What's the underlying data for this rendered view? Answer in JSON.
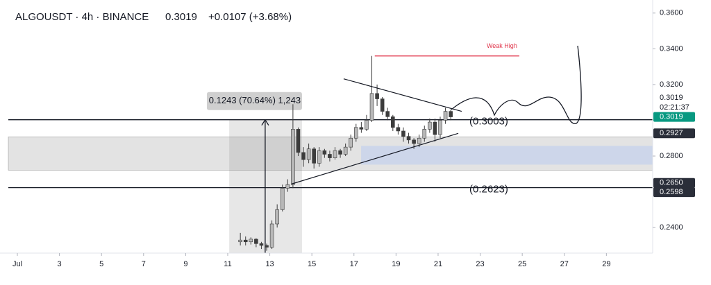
{
  "chart_data": {
    "type": "candlestick",
    "symbol": "ALGOUSDT · 4h · BINANCE",
    "price": "0.3019",
    "change": "+0.0107 (+3.68%)",
    "xlim": [
      0.175,
      31.2
    ],
    "ylim": [
      0.2257,
      0.3673
    ],
    "xticks": [
      {
        "value": 1,
        "label": "Jul"
      },
      3,
      5,
      7,
      9,
      11,
      13,
      15,
      17,
      19,
      21,
      23,
      25,
      27,
      29
    ],
    "yticks": [
      {
        "value": 0.36,
        "label": "0.3600"
      },
      {
        "value": 0.34,
        "label": "0.3400"
      },
      {
        "value": 0.32,
        "label": "0.3200"
      },
      {
        "value": 0.28,
        "label": "0.2800"
      },
      {
        "value": 0.24,
        "label": "0.2400"
      }
    ],
    "up_color": "#b8b8b8",
    "down_color": "#3c3c3c",
    "candles": {
      "x": [
        11.6,
        11.85,
        12.1,
        12.35,
        12.6,
        12.85,
        13.1,
        13.35,
        13.6,
        13.85,
        14.1,
        14.35,
        14.6,
        14.85,
        15.1,
        15.35,
        15.6,
        15.85,
        16.1,
        16.35,
        16.6,
        16.85,
        17.1,
        17.35,
        17.6,
        17.85,
        18.1,
        18.35,
        18.6,
        18.85,
        19.1,
        19.35,
        19.6,
        19.85,
        20.1,
        20.35,
        20.6,
        20.85,
        21.1,
        21.35,
        21.6
      ],
      "open": [
        0.232,
        0.233,
        0.232,
        0.2335,
        0.231,
        0.23,
        0.229,
        0.242,
        0.25,
        0.262,
        0.264,
        0.295,
        0.282,
        0.278,
        0.284,
        0.276,
        0.283,
        0.281,
        0.279,
        0.283,
        0.281,
        0.285,
        0.29,
        0.296,
        0.295,
        0.3,
        0.315,
        0.312,
        0.305,
        0.302,
        0.296,
        0.294,
        0.291,
        0.289,
        0.287,
        0.29,
        0.295,
        0.299,
        0.292,
        0.3,
        0.305
      ],
      "high": [
        0.237,
        0.235,
        0.2345,
        0.234,
        0.232,
        0.231,
        0.244,
        0.253,
        0.264,
        0.267,
        0.309,
        0.296,
        0.285,
        0.287,
        0.285,
        0.285,
        0.284,
        0.283,
        0.285,
        0.284,
        0.287,
        0.292,
        0.298,
        0.299,
        0.303,
        0.336,
        0.32,
        0.313,
        0.307,
        0.303,
        0.298,
        0.296,
        0.293,
        0.29,
        0.292,
        0.297,
        0.301,
        0.301,
        0.302,
        0.307,
        0.306
      ],
      "low": [
        0.23,
        0.23,
        0.2305,
        0.229,
        0.228,
        0.227,
        0.228,
        0.24,
        0.249,
        0.26,
        0.262,
        0.28,
        0.274,
        0.276,
        0.273,
        0.274,
        0.279,
        0.277,
        0.278,
        0.279,
        0.28,
        0.283,
        0.288,
        0.293,
        0.294,
        0.299,
        0.308,
        0.303,
        0.3,
        0.294,
        0.292,
        0.288,
        0.287,
        0.284,
        0.285,
        0.288,
        0.293,
        0.288,
        0.29,
        0.298,
        0.3
      ],
      "close": [
        0.233,
        0.232,
        0.2335,
        0.231,
        0.23,
        0.229,
        0.242,
        0.25,
        0.262,
        0.264,
        0.295,
        0.282,
        0.278,
        0.284,
        0.276,
        0.283,
        0.281,
        0.279,
        0.283,
        0.281,
        0.285,
        0.29,
        0.296,
        0.295,
        0.3,
        0.315,
        0.312,
        0.305,
        0.302,
        0.296,
        0.294,
        0.291,
        0.289,
        0.287,
        0.29,
        0.295,
        0.299,
        0.292,
        0.3,
        0.305,
        0.3019
      ]
    },
    "levels": [
      {
        "value": 0.3003,
        "label": "(0.3003)"
      },
      {
        "value": 0.2623,
        "label": "(0.2623)"
      }
    ],
    "zones": [
      {
        "range": [
          0.2721,
          0.2907
        ],
        "color": "#e3e3e3"
      },
      {
        "range": [
          0.2752,
          0.2857
        ],
        "from": 17.34,
        "color": "#cdd6ea"
      }
    ],
    "trendlines": [
      {
        "x": [
          16.51,
          22.12
        ],
        "y": [
          0.3232,
          0.305
        ]
      },
      {
        "x": [
          14.04,
          21.96
        ],
        "y": [
          0.2644,
          0.2927
        ]
      }
    ],
    "weak_high": {
      "label": "Weak High",
      "value": 0.336,
      "x": [
        17.99,
        24.86
      ],
      "color": "#e0344a"
    },
    "measure": {
      "label": "0.1243 (70.64%) 1,243",
      "x": [
        11.07,
        14.53
      ],
      "y": [
        0.2257,
        0.3003
      ],
      "arrow_x": 12.78
    },
    "price_labels": [
      {
        "value": 0.3019,
        "label": "0.3019",
        "color": "#089981"
      },
      {
        "value": 0.2927,
        "label": "0.2927",
        "color": "#2a2e39"
      },
      {
        "value": 0.265,
        "label": "0.2650",
        "color": "#2a2e39"
      },
      {
        "value": 0.2598,
        "label": "0.2598",
        "color": "#2a2e39"
      }
    ],
    "last_price": "0.3019",
    "countdown": "02:21:37"
  }
}
